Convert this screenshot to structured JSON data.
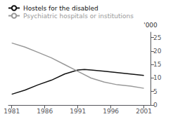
{
  "chart_data": {
    "type": "line",
    "ylabel": "'000",
    "series": [
      {
        "name": "Hostels for the disabled",
        "color": "#111111",
        "x": [
          1981,
          1983,
          1985,
          1987,
          1989,
          1991,
          1992,
          1993,
          1995,
          1997,
          1999,
          2001
        ],
        "values": [
          4.0,
          5.5,
          7.5,
          9.2,
          11.5,
          13.0,
          13.2,
          13.0,
          12.5,
          12.0,
          11.5,
          11.0
        ]
      },
      {
        "name": "Psychiatric hospitals or institutions",
        "color": "#999999",
        "x": [
          1981,
          1983,
          1985,
          1987,
          1989,
          1991,
          1993,
          1995,
          1997,
          1999,
          2001
        ],
        "values": [
          23.0,
          21.5,
          19.5,
          17.5,
          15.0,
          12.5,
          10.0,
          8.5,
          7.5,
          7.0,
          6.2
        ]
      }
    ],
    "xlim": [
      1980.5,
      2002
    ],
    "xticks": [
      1981,
      1986,
      1991,
      1996,
      2001
    ],
    "ylim": [
      0,
      27
    ],
    "yticks": [
      0,
      5,
      10,
      15,
      20,
      25
    ],
    "legend": "upper left",
    "grid": false
  }
}
